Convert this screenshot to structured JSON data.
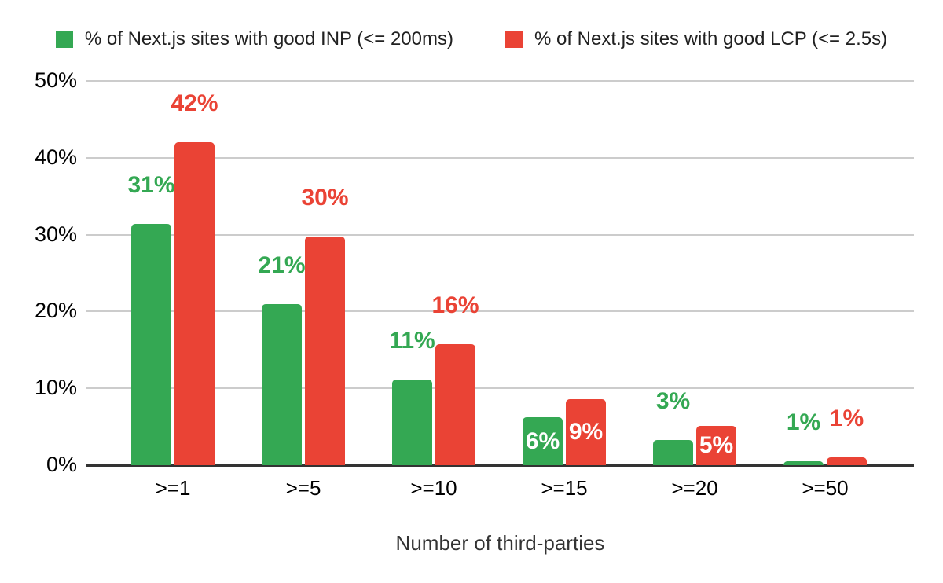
{
  "chart_data": {
    "type": "bar",
    "categories": [
      ">=1",
      ">=5",
      ">=10",
      ">=15",
      ">=20",
      ">=50"
    ],
    "series": [
      {
        "name": "% of Next.js sites with good INP (<= 200ms)",
        "color": "#34a853",
        "values": [
          31.4,
          21.0,
          11.1,
          6.2,
          3.3,
          0.5
        ],
        "labels": [
          "31%",
          "21%",
          "11%",
          "6%",
          "3%",
          "1%"
        ],
        "label_placement": [
          "above",
          "above",
          "above",
          "inside",
          "above",
          "above"
        ]
      },
      {
        "name": "% of Next.js sites with good LCP (<= 2.5s)",
        "color": "#ea4335",
        "values": [
          42.0,
          29.8,
          15.7,
          8.6,
          5.1,
          1.0
        ],
        "labels": [
          "42%",
          "30%",
          "16%",
          "9%",
          "5%",
          "1%"
        ],
        "label_placement": [
          "above",
          "above",
          "above",
          "inside",
          "inside",
          "above"
        ]
      }
    ],
    "xlabel": "Number of third-parties",
    "ylabel": "",
    "ylim": [
      0,
      50
    ],
    "ytick_step": 10,
    "ytick_labels": [
      "0%",
      "10%",
      "20%",
      "30%",
      "40%",
      "50%"
    ],
    "grid": true,
    "legend_position": "top",
    "colors": {
      "grid": "#cccccc",
      "axis": "#333333",
      "inside_label": "#ffffff",
      "tick_text": "#000000"
    }
  }
}
